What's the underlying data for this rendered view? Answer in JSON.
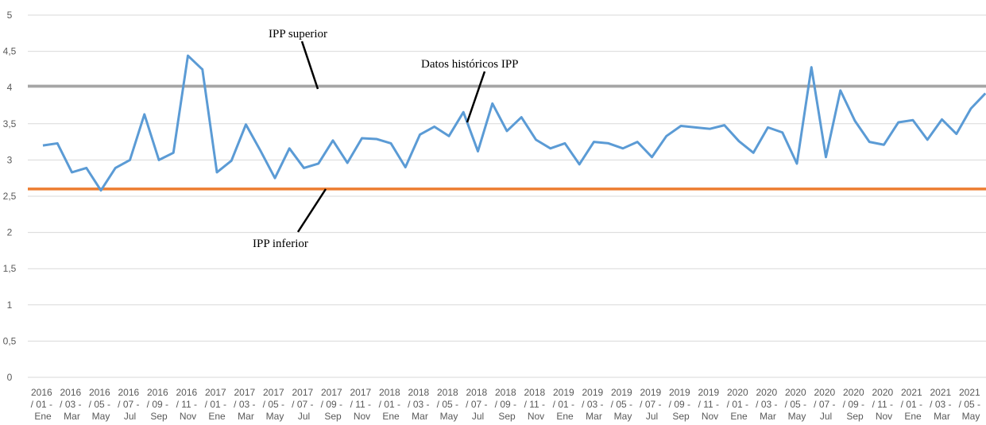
{
  "chart_data": {
    "type": "line",
    "categories": [
      "2016 / 01 - Ene",
      null,
      "2016 / 03 - Mar",
      null,
      "2016 / 05 - May",
      null,
      "2016 / 07 - Jul",
      null,
      "2016 / 09 - Sep",
      null,
      "2016 / 11 - Nov",
      null,
      "2017 / 01 - Ene",
      null,
      "2017 / 03 - Mar",
      null,
      "2017 / 05 - May",
      null,
      "2017 / 07 - Jul",
      null,
      "2017 / 09 - Sep",
      null,
      "2017 / 11 - Nov",
      null,
      "2018 / 01 - Ene",
      null,
      "2018 / 03 - Mar",
      null,
      "2018 / 05 - May",
      null,
      "2018 / 07 - Jul",
      null,
      "2018 / 09 - Sep",
      null,
      "2018 / 11 - Nov",
      null,
      "2019 / 01 - Ene",
      null,
      "2019 / 03 - Mar",
      null,
      "2019 / 05 - May",
      null,
      "2019 / 07 - Jul",
      null,
      "2019 / 09 - Sep",
      null,
      "2019 / 11 - Nov",
      null,
      "2020 / 01 - Ene",
      null,
      "2020 / 03 - Mar",
      null,
      "2020 / 05 - May",
      null,
      "2020 / 07 - Jul",
      null,
      "2020 / 09 - Sep",
      null,
      "2020 / 11 - Nov",
      null,
      "2021 / 01 - Ene",
      null,
      "2021 / 03 - Mar",
      null,
      "2021 / 05 - May",
      null
    ],
    "series": [
      {
        "color": "#5b9bd5",
        "values": [
          3.2,
          3.23,
          2.83,
          2.89,
          2.58,
          2.89,
          3.0,
          3.63,
          3.0,
          3.1,
          4.44,
          4.25,
          2.83,
          2.99,
          3.49,
          3.13,
          2.75,
          3.16,
          2.89,
          2.95,
          3.27,
          2.96,
          3.3,
          3.29,
          3.23,
          2.9,
          3.35,
          3.46,
          3.33,
          3.66,
          3.12,
          3.78,
          3.4,
          3.59,
          3.28,
          3.16,
          3.23,
          2.94,
          3.25,
          3.23,
          3.16,
          3.25,
          3.04,
          3.33,
          3.47,
          3.45,
          3.43,
          3.48,
          3.26,
          3.1,
          3.45,
          3.38,
          2.95,
          4.28,
          3.04,
          3.96,
          3.54,
          3.25,
          3.21,
          3.52,
          3.55,
          3.28,
          3.56,
          3.36,
          3.71,
          3.92
        ]
      }
    ],
    "hlines": [
      {
        "value": 4.02,
        "color": "#a5a5a5"
      },
      {
        "value": 2.6,
        "color": "#ed7d31"
      }
    ],
    "annotations": [
      "IPP superior",
      "Datos históricos IPP",
      "IPP inferior"
    ],
    "ylim": [
      0,
      5
    ],
    "yticks": [
      0,
      {
        "value": 0.5,
        "label": "0,5"
      },
      1,
      {
        "value": 1.5,
        "label": "1,5"
      },
      2,
      {
        "value": 2.5,
        "label": "2,5"
      },
      3,
      {
        "value": 3.5,
        "label": "3,5"
      },
      4,
      {
        "value": 4.5,
        "label": "4,5"
      },
      5
    ],
    "grid": true
  }
}
